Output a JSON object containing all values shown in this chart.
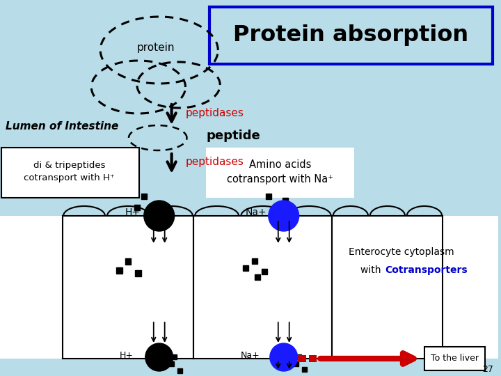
{
  "title": "Protein absorption",
  "background_color": "#b8dce8",
  "cell_color": "#ffffff",
  "lumen_label": "Lumen of Intestine",
  "protein_label": "protein",
  "peptide_label": "peptide",
  "peptidases_label": "peptidases",
  "amino_acids_label": "Amino acids\ncotransport with Na⁺",
  "di_tri_label": "di & tripeptides\ncotransport with H⁺",
  "enterocyte_label": "Enterocyte cytoplasm",
  "cotransporters_label": "Cotransporters",
  "liver_label": "To the liver",
  "page_num": "27",
  "title_box_color": "#0000cc",
  "peptidases_color": "#cc0000",
  "cotransporters_color": "#0000cc",
  "H_plus": "H+",
  "Na_plus": "Na+"
}
